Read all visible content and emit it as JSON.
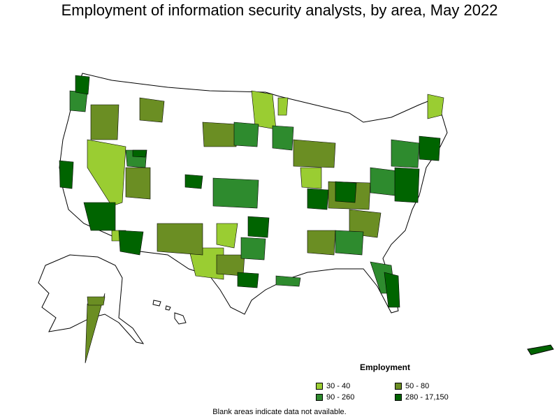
{
  "title": "Employment of information security analysts, by area, May 2022",
  "legend": {
    "title": "Employment",
    "items": [
      {
        "label": "30 - 40",
        "color": "#9acd32"
      },
      {
        "label": "50 - 80",
        "color": "#6b8e23"
      },
      {
        "label": "90 - 260",
        "color": "#2e8b2e"
      },
      {
        "label": "280 - 17,150",
        "color": "#006400"
      }
    ]
  },
  "footnote": "Blank areas indicate data not available."
}
